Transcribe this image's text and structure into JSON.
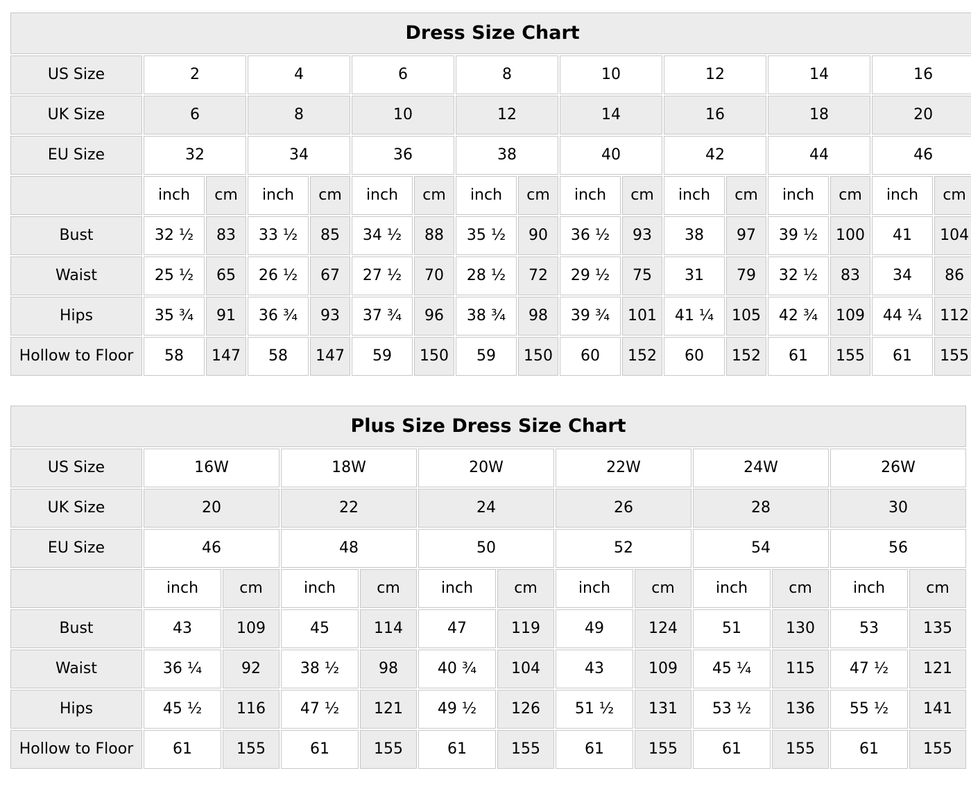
{
  "colors": {
    "cell_shaded": "#ececec",
    "cell_plain": "#ffffff",
    "grid_border": "#c7c7c7",
    "text": "#000000"
  },
  "tables": [
    {
      "title": "Dress Size Chart",
      "unit_inch_label": "inch",
      "unit_cm_label": "cm",
      "size_rows": [
        {
          "label": "US Size",
          "shaded": false,
          "values": [
            "2",
            "4",
            "6",
            "8",
            "10",
            "12",
            "14",
            "16"
          ]
        },
        {
          "label": "UK Size",
          "shaded": true,
          "values": [
            "6",
            "8",
            "10",
            "12",
            "14",
            "16",
            "18",
            "20"
          ]
        },
        {
          "label": "EU Size",
          "shaded": false,
          "values": [
            "32",
            "34",
            "36",
            "38",
            "40",
            "42",
            "44",
            "46"
          ]
        }
      ],
      "measurement_rows": [
        {
          "label": "Bust",
          "inch": [
            "32 ½",
            "33 ½",
            "34 ½",
            "35 ½",
            "36 ½",
            "38",
            "39 ½",
            "41"
          ],
          "cm": [
            "83",
            "85",
            "88",
            "90",
            "93",
            "97",
            "100",
            "104"
          ]
        },
        {
          "label": "Waist",
          "inch": [
            "25 ½",
            "26 ½",
            "27 ½",
            "28 ½",
            "29 ½",
            "31",
            "32 ½",
            "34"
          ],
          "cm": [
            "65",
            "67",
            "70",
            "72",
            "75",
            "79",
            "83",
            "86"
          ]
        },
        {
          "label": "Hips",
          "inch": [
            "35 ¾",
            "36 ¾",
            "37 ¾",
            "38 ¾",
            "39 ¾",
            "41 ¼",
            "42 ¾",
            "44 ¼"
          ],
          "cm": [
            "91",
            "93",
            "96",
            "98",
            "101",
            "105",
            "109",
            "112"
          ]
        },
        {
          "label": "Hollow to Floor",
          "inch": [
            "58",
            "58",
            "59",
            "59",
            "60",
            "60",
            "61",
            "61"
          ],
          "cm": [
            "147",
            "147",
            "150",
            "150",
            "152",
            "152",
            "155",
            "155"
          ]
        }
      ]
    },
    {
      "title": "Plus Size Dress Size Chart",
      "unit_inch_label": "inch",
      "unit_cm_label": "cm",
      "size_rows": [
        {
          "label": "US Size",
          "shaded": false,
          "values": [
            "16W",
            "18W",
            "20W",
            "22W",
            "24W",
            "26W"
          ]
        },
        {
          "label": "UK Size",
          "shaded": true,
          "values": [
            "20",
            "22",
            "24",
            "26",
            "28",
            "30"
          ]
        },
        {
          "label": "EU Size",
          "shaded": false,
          "values": [
            "46",
            "48",
            "50",
            "52",
            "54",
            "56"
          ]
        }
      ],
      "measurement_rows": [
        {
          "label": "Bust",
          "inch": [
            "43",
            "45",
            "47",
            "49",
            "51",
            "53"
          ],
          "cm": [
            "109",
            "114",
            "119",
            "124",
            "130",
            "135"
          ]
        },
        {
          "label": "Waist",
          "inch": [
            "36 ¼",
            "38 ½",
            "40 ¾",
            "43",
            "45 ¼",
            "47 ½"
          ],
          "cm": [
            "92",
            "98",
            "104",
            "109",
            "115",
            "121"
          ]
        },
        {
          "label": "Hips",
          "inch": [
            "45 ½",
            "47 ½",
            "49 ½",
            "51 ½",
            "53 ½",
            "55 ½"
          ],
          "cm": [
            "116",
            "121",
            "126",
            "131",
            "136",
            "141"
          ]
        },
        {
          "label": "Hollow to Floor",
          "inch": [
            "61",
            "61",
            "61",
            "61",
            "61",
            "61"
          ],
          "cm": [
            "155",
            "155",
            "155",
            "155",
            "155",
            "155"
          ]
        }
      ]
    }
  ]
}
